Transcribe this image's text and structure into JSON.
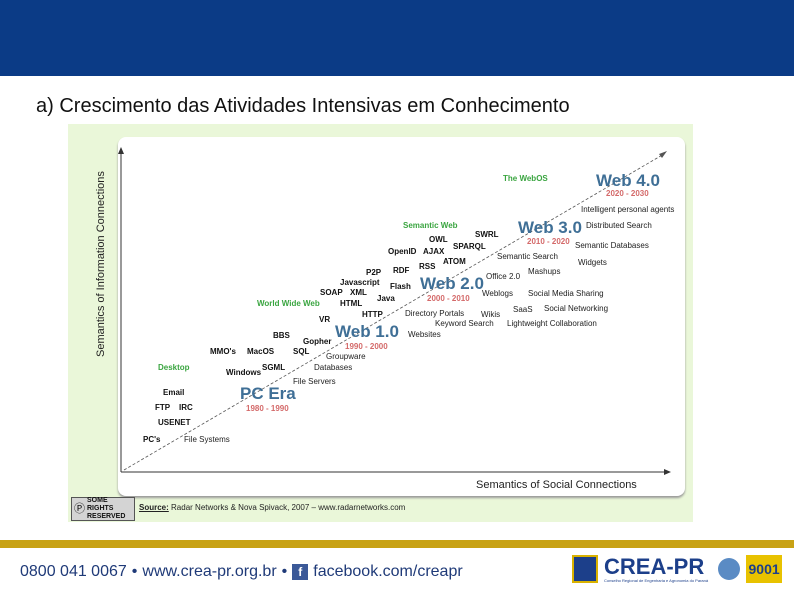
{
  "slide_title": "a) Crescimento das Atividades Intensivas em Conhecimento",
  "diagram": {
    "y_axis": "Semantics of Information Connections",
    "x_axis": "Semantics of Social Connections",
    "eras": [
      {
        "name": "PC Era",
        "years": "1980 - 1990"
      },
      {
        "name": "Web 1.0",
        "years": "1990 - 2000"
      },
      {
        "name": "Web 2.0",
        "years": "2000 - 2010"
      },
      {
        "name": "Web 3.0",
        "years": "2010 - 2020"
      },
      {
        "name": "Web 4.0",
        "years": "2020 - 2030"
      }
    ],
    "categories": [
      "Desktop",
      "World Wide Web",
      "Semantic Web",
      "The WebOS"
    ],
    "upper_terms": [
      "PC's",
      "USENET",
      "FTP",
      "IRC",
      "Email",
      "MMO's",
      "MacOS",
      "Windows",
      "SGML",
      "BBS",
      "Gopher",
      "SQL",
      "VR",
      "HTTP",
      "World Wide Web",
      "HTML",
      "SOAP",
      "XML",
      "Java",
      "Javascript",
      "Flash",
      "P2P",
      "RDF",
      "RSS",
      "OpenID",
      "AJAX",
      "OWL",
      "ATOM",
      "SPARQL",
      "SWRL"
    ],
    "lower_terms": [
      "File Systems",
      "File Servers",
      "Databases",
      "Groupware",
      "Websites",
      "Keyword Search",
      "Directory Portals",
      "Wikis",
      "Lightweight Collaboration",
      "SaaS",
      "Social Networking",
      "Weblogs",
      "Social Media Sharing",
      "Office 2.0",
      "Mashups",
      "Semantic Search",
      "Widgets",
      "Semantic Databases",
      "Distributed Search",
      "Intelligent personal agents"
    ],
    "source_label": "Source:",
    "source_text": "Radar Networks & Nova Spivack, 2007 – www.radarnetworks.com",
    "cc_badge": "SOME RIGHTS RESERVED"
  },
  "footer": {
    "phone": "0800 041 0067",
    "sep": "•",
    "website": "www.crea-pr.org.br",
    "facebook_icon": "f",
    "facebook": "facebook.com/creapr",
    "logo_text": "CREA-PR",
    "logo_sub": "Conselho Regional de Engenharia e Agronomia do Paraná",
    "iso": "9001"
  },
  "colors": {
    "band": "#0b3b86",
    "gold": "#c8a215",
    "era": "#3f6f96",
    "years": "#d46a6a",
    "category": "#3aa540"
  }
}
